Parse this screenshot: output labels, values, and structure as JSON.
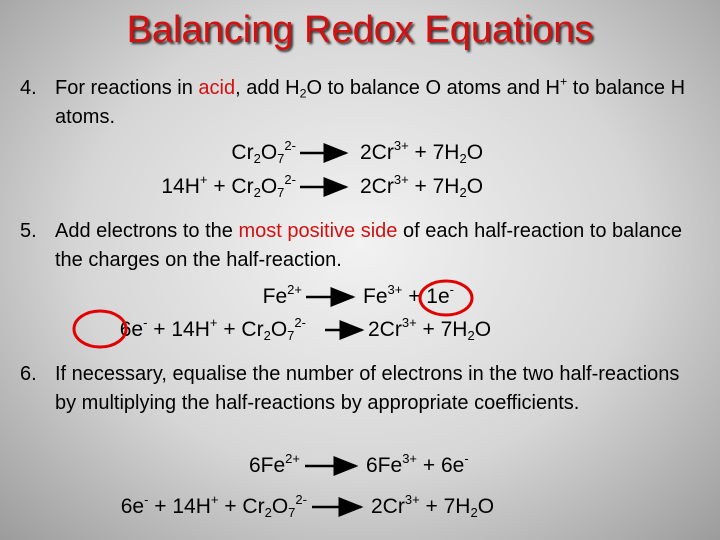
{
  "title": "Balancing Redox Equations",
  "steps": [
    {
      "number": "4.",
      "text": [
        {
          "text": "For reactions in "
        },
        {
          "highlight": "acid"
        },
        {
          "text": ", add H"
        },
        {
          "sub": "2"
        },
        {
          "text": "O to balance O atoms and H"
        },
        {
          "sup": "+"
        },
        {
          "text": " to balance H atoms."
        }
      ],
      "equations": [
        {
          "left": [
            {
              "text": "Cr"
            },
            {
              "sub": "2"
            },
            {
              "text": "O"
            },
            {
              "sub": "7"
            },
            {
              "sup": "2-"
            }
          ],
          "right": [
            {
              "text": "2Cr"
            },
            {
              "sup": "3+"
            },
            {
              "text": " + 7H"
            },
            {
              "sub": "2"
            },
            {
              "text": "O"
            }
          ]
        },
        {
          "left": [
            {
              "text": "14H"
            },
            {
              "sup": "+"
            },
            {
              "text": " + Cr"
            },
            {
              "sub": "2"
            },
            {
              "text": "O"
            },
            {
              "sub": "7"
            },
            {
              "sup": "2-"
            }
          ],
          "right": [
            {
              "text": "2Cr"
            },
            {
              "sup": "3+"
            },
            {
              "text": " + 7H"
            },
            {
              "sub": "2"
            },
            {
              "text": "O"
            }
          ]
        }
      ]
    },
    {
      "number": "5.",
      "text": [
        {
          "text": "Add electrons to the "
        },
        {
          "highlight": "most positive side"
        },
        {
          "text": " of each half-reaction to balance the charges on the half-reaction."
        }
      ],
      "equations": [
        {
          "left": [
            {
              "text": "Fe"
            },
            {
              "sup": "2+"
            }
          ],
          "right": [
            {
              "text": "Fe"
            },
            {
              "sup": "3+"
            },
            {
              "text": " + 1e"
            },
            {
              "sup": "-"
            }
          ]
        },
        {
          "left": [
            {
              "text": "6e"
            },
            {
              "sup": "-"
            },
            {
              "text": " + 14H"
            },
            {
              "sup": "+"
            },
            {
              "text": " + Cr"
            },
            {
              "sub": "2"
            },
            {
              "text": "O"
            },
            {
              "sub": "7"
            },
            {
              "sup": "2-"
            }
          ],
          "right": [
            {
              "text": "2Cr"
            },
            {
              "sup": "3+"
            },
            {
              "text": " + 7H"
            },
            {
              "sub": "2"
            },
            {
              "text": "O"
            }
          ]
        }
      ]
    },
    {
      "number": "6.",
      "text": [
        {
          "text": "If necessary, equalise the number of electrons in the two half-reactions by multiplying the half-reactions by appropriate coefficients."
        }
      ],
      "equations": [
        {
          "left": [
            {
              "text": "6Fe"
            },
            {
              "sup": "2+"
            }
          ],
          "right": [
            {
              "text": "6Fe"
            },
            {
              "sup": "3+"
            },
            {
              "text": " + 6e"
            },
            {
              "sup": "-"
            }
          ]
        },
        {
          "left": [
            {
              "text": "6e"
            },
            {
              "sup": "-"
            },
            {
              "text": " + 14H"
            },
            {
              "sup": "+"
            },
            {
              "text": " + Cr"
            },
            {
              "sub": "2"
            },
            {
              "text": "O"
            },
            {
              "sub": "7"
            },
            {
              "sup": "2-"
            }
          ],
          "right": [
            {
              "text": "2Cr"
            },
            {
              "sup": "3+"
            },
            {
              "text": " + 7H"
            },
            {
              "sub": "2"
            },
            {
              "text": "O"
            }
          ]
        }
      ]
    }
  ]
}
